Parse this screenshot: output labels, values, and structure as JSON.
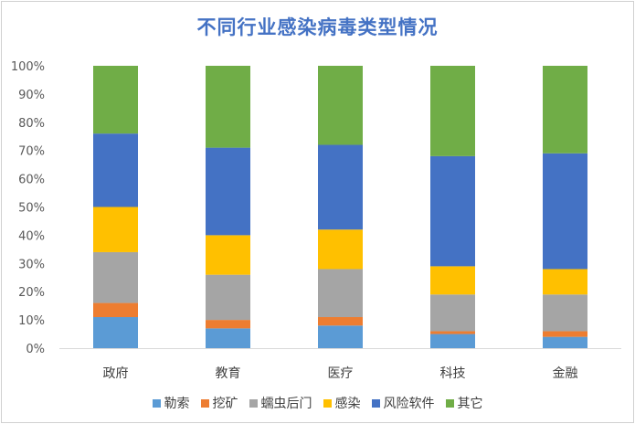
{
  "chart_data": {
    "type": "bar",
    "stacked": true,
    "normalized": true,
    "title": "不同行业感染病毒类型情况",
    "categories": [
      "政府",
      "教育",
      "医疗",
      "科技",
      "金融"
    ],
    "ylim": [
      0,
      100
    ],
    "yticks": [
      "0%",
      "10%",
      "20%",
      "30%",
      "40%",
      "50%",
      "60%",
      "70%",
      "80%",
      "90%",
      "100%"
    ],
    "grid": false,
    "legend_position": "bottom",
    "series": [
      {
        "name": "勒索",
        "color": "#5b9bd5",
        "values": [
          11,
          7,
          8,
          5,
          4
        ]
      },
      {
        "name": "挖矿",
        "color": "#ed7d31",
        "values": [
          5,
          3,
          3,
          1,
          2
        ]
      },
      {
        "name": "蠕虫后门",
        "color": "#a5a5a5",
        "values": [
          18,
          16,
          17,
          13,
          13
        ]
      },
      {
        "name": "感染",
        "color": "#ffc000",
        "values": [
          16,
          14,
          14,
          10,
          9
        ]
      },
      {
        "name": "风险软件",
        "color": "#4472c4",
        "values": [
          26,
          31,
          30,
          39,
          41
        ]
      },
      {
        "name": "其它",
        "color": "#70ad47",
        "values": [
          24,
          29,
          28,
          32,
          31
        ]
      }
    ]
  }
}
